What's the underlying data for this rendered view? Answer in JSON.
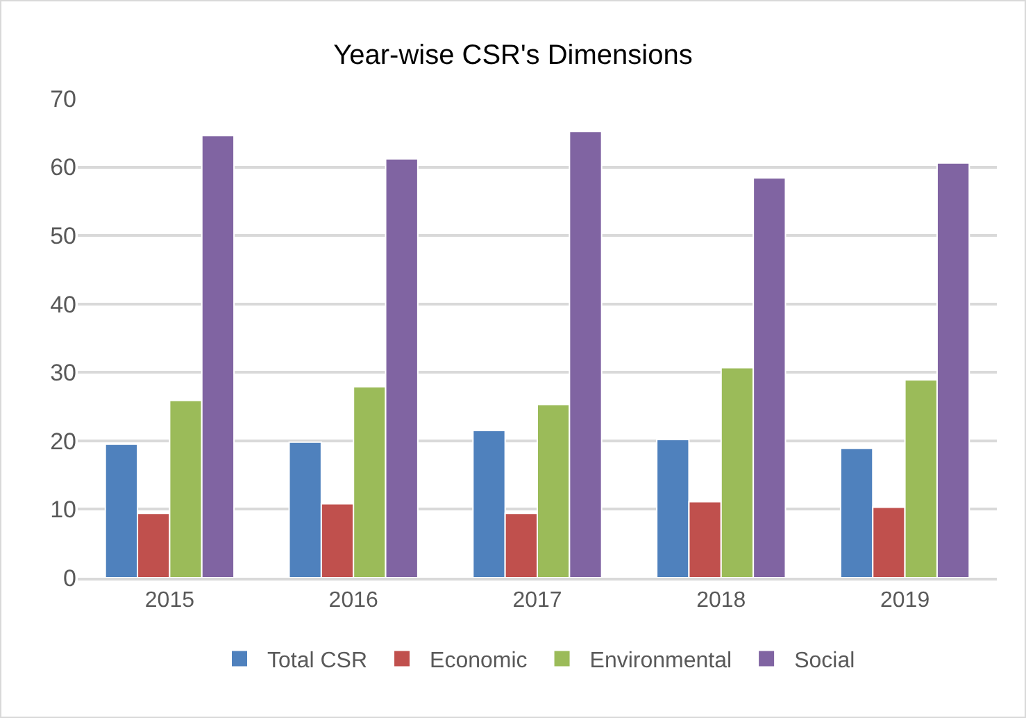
{
  "chart_data": {
    "type": "bar",
    "title": "Year-wise CSR's Dimensions",
    "categories": [
      "2015",
      "2016",
      "2017",
      "2018",
      "2019"
    ],
    "series": [
      {
        "name": "Total CSR",
        "color": "#4f81bd",
        "values": [
          19.5,
          19.8,
          21.5,
          20.2,
          18.9
        ]
      },
      {
        "name": "Economic",
        "color": "#c0504d",
        "values": [
          9.4,
          10.8,
          9.4,
          11.1,
          10.3
        ]
      },
      {
        "name": "Environmental",
        "color": "#9bbb59",
        "values": [
          25.9,
          27.9,
          25.3,
          30.7,
          28.9
        ]
      },
      {
        "name": "Social",
        "color": "#8064a2",
        "values": [
          64.6,
          61.2,
          65.2,
          58.4,
          60.6
        ]
      }
    ],
    "ylim": [
      0,
      70
    ],
    "yticks": [
      0,
      10,
      20,
      30,
      40,
      50,
      60,
      70
    ],
    "grid": "y",
    "legend": "bottom"
  }
}
